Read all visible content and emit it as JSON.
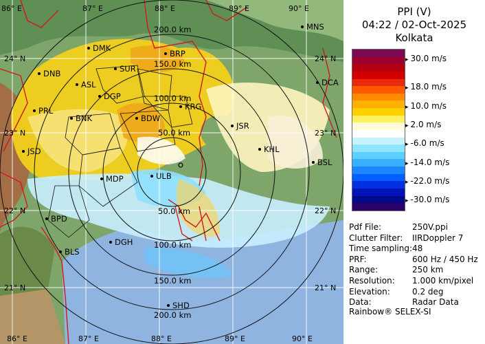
{
  "panel": {
    "title_line1": "PPI (V)",
    "title_line2": "04:22 / 02-Oct-2025",
    "title_line3": "Kolkata"
  },
  "legend": {
    "colors": [
      "#7b0a52",
      "#9b0030",
      "#b50012",
      "#d40000",
      "#e82a0a",
      "#ff5a00",
      "#ff8a00",
      "#ffb000",
      "#ffd000",
      "#fff060",
      "#fffbd8",
      "#ffffff",
      "#c8f2ff",
      "#8ee6ff",
      "#5ccfff",
      "#38b0ff",
      "#1a86ff",
      "#0060ff",
      "#0030e0",
      "#0014b8",
      "#000a8a",
      "#2a006a"
    ],
    "ticks": [
      "30.0 m/s",
      "18.0 m/s",
      "10.0 m/s",
      "2.0 m/s",
      "-6.0 m/s",
      "-14.0 m/s",
      "-22.0 m/s",
      "-30.0 m/s"
    ]
  },
  "info": [
    {
      "key": "Pdf File:",
      "value": "250V.ppi"
    },
    {
      "key": "Clutter Filter:",
      "value": "IIRDoppler 7"
    },
    {
      "key": "Time sampling:",
      "value": "48"
    },
    {
      "key": "PRF:",
      "value": "600 Hz / 450 Hz"
    },
    {
      "key": "Range:",
      "value": "250 km"
    },
    {
      "key": "Resolution:",
      "value": "1.000 km/pixel"
    },
    {
      "key": "Elevation:",
      "value": "0.2 deg"
    },
    {
      "key": "Data:",
      "value": "Radar Data"
    }
  ],
  "brand": "Rainbow® SELEX-SI",
  "map": {
    "lon_top": [
      "86° E",
      "87° E",
      "88° E",
      "89° E",
      "90° E"
    ],
    "lon_bottom": [
      "86° E",
      "87° E",
      "88° E",
      "89° E",
      "90° E"
    ],
    "lat_left": [
      "24° N",
      "23° N",
      "22° N",
      "21° N"
    ],
    "lat_right": [
      "24° N",
      "23° N",
      "22° N",
      "21° N"
    ],
    "range_rings": [
      "50.0 km",
      "100.0 km",
      "150.0 km",
      "200.0 km"
    ],
    "range_rings_south": [
      "50.0 km",
      "100.0 km",
      "150.0 km",
      "200.0 km"
    ],
    "cities": [
      {
        "code": "MNS"
      },
      {
        "code": "DMK"
      },
      {
        "code": "BRP"
      },
      {
        "code": "DNB"
      },
      {
        "code": "SUR"
      },
      {
        "code": "DCA"
      },
      {
        "code": "ASL"
      },
      {
        "code": "DGP"
      },
      {
        "code": "KRG"
      },
      {
        "code": "PRL"
      },
      {
        "code": "BNK"
      },
      {
        "code": "BDW"
      },
      {
        "code": "JSR"
      },
      {
        "code": "KHL"
      },
      {
        "code": "JSD"
      },
      {
        "code": "BSL"
      },
      {
        "code": "MDP"
      },
      {
        "code": "ULB"
      },
      {
        "code": "BPD"
      },
      {
        "code": "DGH"
      },
      {
        "code": "BLS"
      },
      {
        "code": "SHD"
      }
    ]
  }
}
